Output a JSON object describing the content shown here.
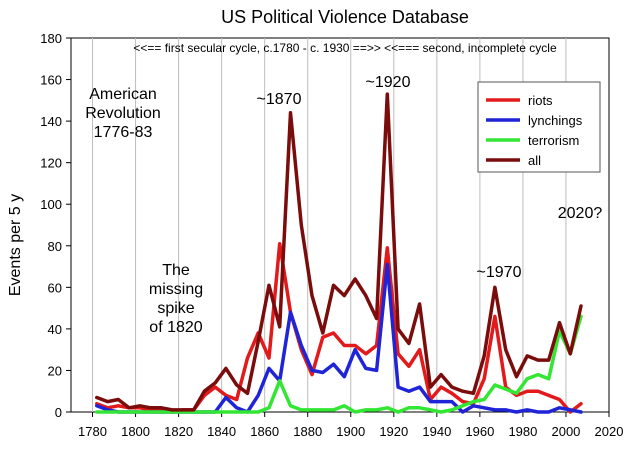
{
  "chart_data": {
    "type": "line",
    "title": "US Political Violence Database",
    "xlabel": "",
    "ylabel": "Events per 5 y",
    "xlim": [
      1770,
      2020
    ],
    "ylim": [
      0,
      180
    ],
    "x_ticks": [
      1780,
      1800,
      1820,
      1840,
      1860,
      1880,
      1900,
      1920,
      1940,
      1960,
      1980,
      2000,
      2020
    ],
    "y_ticks": [
      0,
      20,
      40,
      60,
      80,
      100,
      120,
      140,
      160,
      180
    ],
    "grid": "vertical",
    "legend_position": "top-right",
    "series": [
      {
        "name": "riots",
        "color": "#e31a1c",
        "x": [
          1782,
          1787,
          1792,
          1797,
          1802,
          1807,
          1812,
          1817,
          1822,
          1827,
          1832,
          1837,
          1842,
          1847,
          1852,
          1857,
          1862,
          1867,
          1872,
          1877,
          1882,
          1887,
          1892,
          1897,
          1902,
          1907,
          1912,
          1917,
          1922,
          1927,
          1932,
          1937,
          1942,
          1947,
          1952,
          1957,
          1962,
          1967,
          1972,
          1977,
          1982,
          1987,
          1992,
          1997,
          2002,
          2007
        ],
        "y": [
          4,
          2,
          3,
          2,
          2,
          1,
          1,
          0,
          1,
          1,
          8,
          12,
          8,
          6,
          26,
          38,
          26,
          81,
          48,
          30,
          18,
          36,
          38,
          32,
          32,
          28,
          32,
          79,
          28,
          22,
          30,
          6,
          12,
          9,
          5,
          4,
          16,
          46,
          12,
          8,
          10,
          10,
          8,
          6,
          0,
          4
        ]
      },
      {
        "name": "lynchings",
        "color": "#1f24d6",
        "x": [
          1782,
          1787,
          1792,
          1797,
          1802,
          1807,
          1812,
          1817,
          1822,
          1827,
          1832,
          1837,
          1842,
          1847,
          1852,
          1857,
          1862,
          1867,
          1872,
          1877,
          1882,
          1887,
          1892,
          1897,
          1902,
          1907,
          1912,
          1917,
          1922,
          1927,
          1932,
          1937,
          1942,
          1947,
          1952,
          1957,
          1962,
          1967,
          1972,
          1977,
          1982,
          1987,
          1992,
          1997,
          2002,
          2007
        ],
        "y": [
          3,
          1,
          0,
          0,
          0,
          0,
          0,
          0,
          0,
          0,
          0,
          0,
          7,
          2,
          0,
          8,
          21,
          15,
          48,
          32,
          20,
          19,
          23,
          17,
          30,
          21,
          20,
          71,
          12,
          10,
          12,
          5,
          5,
          5,
          0,
          3,
          2,
          1,
          1,
          0,
          1,
          0,
          0,
          2,
          1,
          0
        ]
      },
      {
        "name": "terrorism",
        "color": "#33e633",
        "x": [
          1782,
          1787,
          1792,
          1797,
          1802,
          1807,
          1812,
          1817,
          1822,
          1827,
          1832,
          1837,
          1842,
          1847,
          1852,
          1857,
          1862,
          1867,
          1872,
          1877,
          1882,
          1887,
          1892,
          1897,
          1902,
          1907,
          1912,
          1917,
          1922,
          1927,
          1932,
          1937,
          1942,
          1947,
          1952,
          1957,
          1962,
          1967,
          1972,
          1977,
          1982,
          1987,
          1992,
          1997,
          2002,
          2007
        ],
        "y": [
          0,
          0,
          0,
          0,
          0,
          0,
          0,
          0,
          0,
          0,
          0,
          0,
          0,
          0,
          0,
          0,
          2,
          15,
          3,
          1,
          1,
          1,
          1,
          3,
          0,
          1,
          1,
          2,
          0,
          2,
          2,
          1,
          0,
          1,
          3,
          5,
          6,
          13,
          11,
          9,
          16,
          18,
          16,
          39,
          28,
          46
        ]
      },
      {
        "name": "all",
        "color": "#7b0c0c",
        "x": [
          1782,
          1787,
          1792,
          1797,
          1802,
          1807,
          1812,
          1817,
          1822,
          1827,
          1832,
          1837,
          1842,
          1847,
          1852,
          1857,
          1862,
          1867,
          1872,
          1877,
          1882,
          1887,
          1892,
          1897,
          1902,
          1907,
          1912,
          1917,
          1922,
          1927,
          1932,
          1937,
          1942,
          1947,
          1952,
          1957,
          1962,
          1967,
          1972,
          1977,
          1982,
          1987,
          1992,
          1997,
          2002,
          2007
        ],
        "y": [
          7,
          5,
          6,
          2,
          3,
          2,
          2,
          1,
          1,
          1,
          10,
          14,
          21,
          13,
          9,
          34,
          61,
          41,
          144,
          90,
          56,
          38,
          61,
          56,
          64,
          56,
          45,
          153,
          40,
          33,
          52,
          12,
          18,
          12,
          10,
          9,
          27,
          60,
          30,
          17,
          27,
          25,
          25,
          43,
          28,
          51
        ]
      }
    ],
    "annotations": [
      {
        "text": "<<==  first secular cycle, c.1780 - c. 1930  ==>> <<=== second, incomplete cycle"
      },
      {
        "text": "American"
      },
      {
        "text": "Revolution"
      },
      {
        "text": "1776-83"
      },
      {
        "text": "~1870"
      },
      {
        "text": "~1920"
      },
      {
        "text": "The"
      },
      {
        "text": "missing"
      },
      {
        "text": "spike"
      },
      {
        "text": "of 1820"
      },
      {
        "text": "~1970"
      },
      {
        "text": "2020?"
      }
    ]
  }
}
